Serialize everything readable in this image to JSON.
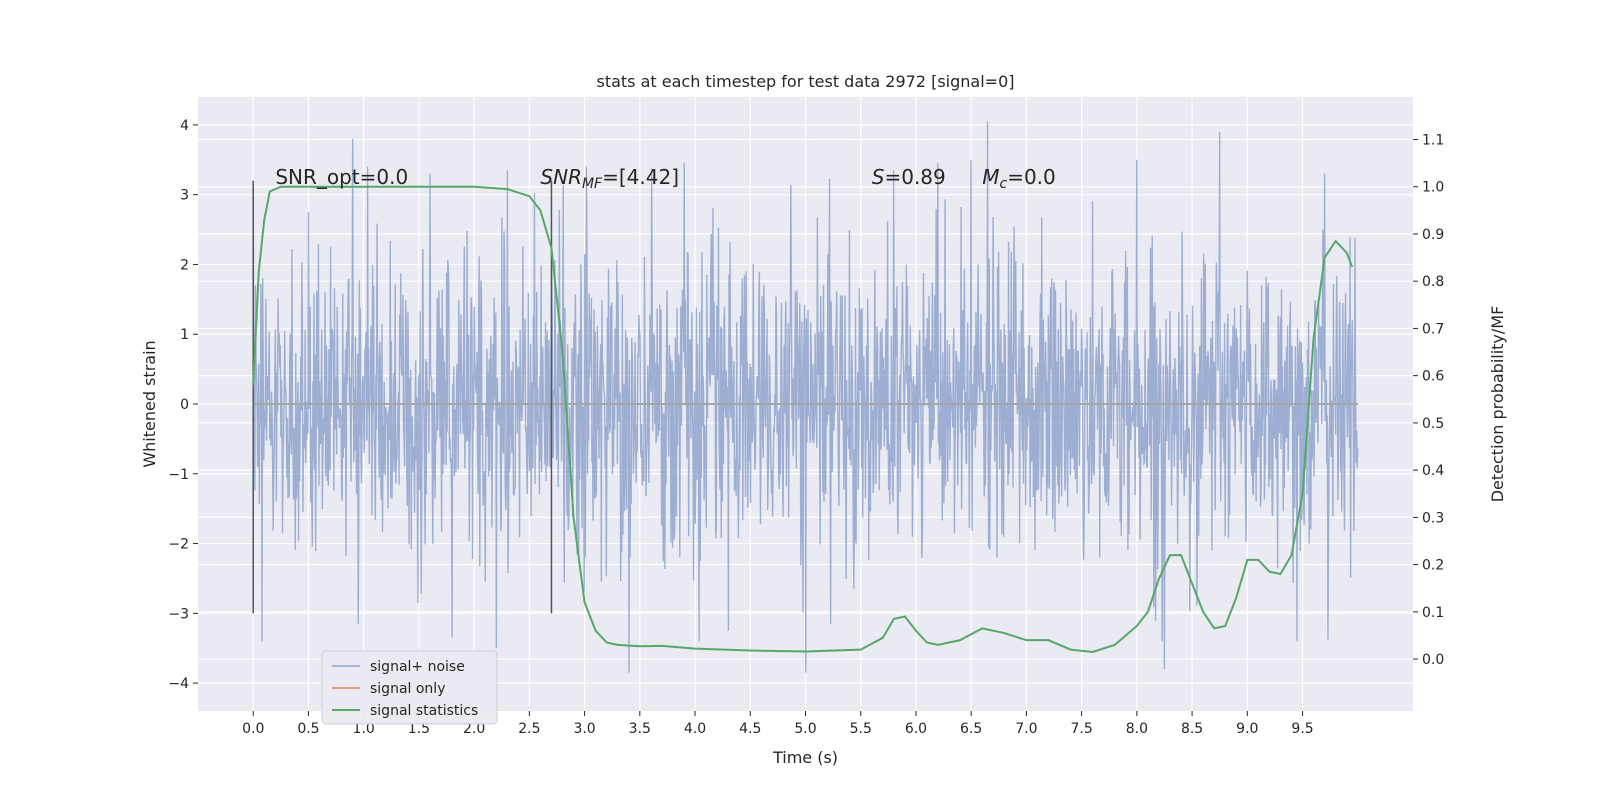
{
  "chart_data": {
    "type": "line",
    "title": "stats at each timestep for test data 2972 [signal=0]",
    "xlabel": "Time (s)",
    "ylabel": "Whitened strain",
    "y2label": "Detection probability/MF",
    "xlim": [
      -0.5,
      10.5
    ],
    "ylim": [
      -4.4,
      4.4
    ],
    "y2lim": [
      -0.11,
      1.19
    ],
    "x_ticks": [
      0.0,
      0.5,
      1.0,
      1.5,
      2.0,
      2.5,
      3.0,
      3.5,
      4.0,
      4.5,
      5.0,
      5.5,
      6.0,
      6.5,
      7.0,
      7.5,
      8.0,
      8.5,
      9.0,
      9.5
    ],
    "x_tick_labels": [
      "0.0",
      "0.5",
      "1.0",
      "1.5",
      "2.0",
      "2.5",
      "3.0",
      "3.5",
      "4.0",
      "4.5",
      "5.0",
      "5.5",
      "6.0",
      "6.5",
      "7.0",
      "7.5",
      "8.0",
      "8.5",
      "9.0",
      "9.5"
    ],
    "y_ticks": [
      -4,
      -3,
      -2,
      -1,
      0,
      1,
      2,
      3,
      4
    ],
    "y_tick_labels": [
      "−4",
      "−3",
      "−2",
      "−1",
      "0",
      "1",
      "2",
      "3",
      "4"
    ],
    "y2_ticks": [
      0.0,
      0.1,
      0.2,
      0.3,
      0.4,
      0.5,
      0.6,
      0.7,
      0.8,
      0.9,
      1.0,
      1.1
    ],
    "y2_tick_labels": [
      "0.0",
      "0.1",
      "0.2",
      "0.3",
      "0.4",
      "0.5",
      "0.6",
      "0.7",
      "0.8",
      "0.9",
      "1.0",
      "1.1"
    ],
    "grid": true,
    "legend_position": "lower-left",
    "series": [
      {
        "name": "signal+ noise",
        "axis": "left",
        "color": "#8fa3cc",
        "x_range": [
          0.0,
          10.0
        ],
        "envelope_spikes": [
          [
            0.0,
            3.2
          ],
          [
            0.9,
            3.8
          ],
          [
            1.6,
            3.3
          ],
          [
            2.3,
            3.35
          ],
          [
            3.9,
            3.45
          ],
          [
            5.8,
            3.35
          ],
          [
            6.2,
            3.45
          ],
          [
            6.5,
            3.5
          ],
          [
            6.65,
            4.05
          ],
          [
            8.0,
            3.5
          ],
          [
            8.75,
            3.9
          ],
          [
            9.7,
            3.3
          ],
          [
            1.8,
            -3.35
          ],
          [
            2.2,
            -3.5
          ],
          [
            3.4,
            -3.85
          ],
          [
            5.0,
            -3.85
          ],
          [
            8.25,
            -3.8
          ],
          [
            9.45,
            -3.4
          ],
          [
            0.95,
            -3.15
          ],
          [
            4.3,
            -3.25
          ]
        ]
      },
      {
        "name": "signal only",
        "axis": "left",
        "color": "#dd8452",
        "x": [
          0.0,
          10.0
        ],
        "y": [
          0.0,
          0.0
        ]
      },
      {
        "name": "signal statistics",
        "axis": "right",
        "color": "#55a868",
        "x": [
          0.0,
          0.05,
          0.1,
          0.15,
          0.25,
          0.5,
          1.0,
          1.5,
          2.0,
          2.3,
          2.5,
          2.6,
          2.7,
          2.8,
          2.9,
          3.0,
          3.1,
          3.2,
          3.3,
          3.5,
          3.7,
          4.0,
          4.5,
          5.0,
          5.5,
          5.7,
          5.8,
          5.9,
          6.0,
          6.1,
          6.2,
          6.4,
          6.6,
          6.8,
          7.0,
          7.2,
          7.4,
          7.6,
          7.8,
          8.0,
          8.1,
          8.2,
          8.3,
          8.4,
          8.5,
          8.6,
          8.7,
          8.8,
          8.9,
          9.0,
          9.1,
          9.2,
          9.3,
          9.4,
          9.5,
          9.6,
          9.7,
          9.8,
          9.9,
          9.95
        ],
        "y": [
          0.58,
          0.82,
          0.93,
          0.99,
          1.0,
          1.0,
          1.0,
          1.0,
          1.0,
          0.995,
          0.98,
          0.95,
          0.87,
          0.65,
          0.3,
          0.12,
          0.06,
          0.035,
          0.03,
          0.027,
          0.028,
          0.022,
          0.018,
          0.016,
          0.02,
          0.045,
          0.085,
          0.09,
          0.06,
          0.035,
          0.03,
          0.04,
          0.065,
          0.055,
          0.04,
          0.04,
          0.02,
          0.015,
          0.03,
          0.07,
          0.1,
          0.17,
          0.22,
          0.22,
          0.16,
          0.1,
          0.065,
          0.07,
          0.13,
          0.21,
          0.21,
          0.185,
          0.18,
          0.22,
          0.35,
          0.68,
          0.85,
          0.885,
          0.86,
          0.83
        ]
      }
    ],
    "vertical_markers": [
      {
        "x": 0.0,
        "y_range": [
          -3.0,
          3.2
        ]
      },
      {
        "x": 2.7,
        "y_range": [
          -3.0,
          3.2
        ]
      }
    ],
    "annotations": [
      {
        "x": 0.2,
        "y": 3.15,
        "text": "SNR_opt=0.0"
      },
      {
        "x": 2.6,
        "y": 3.15,
        "prefix": "SNR",
        "sub": "MF",
        "suffix": "=[4.42]"
      },
      {
        "x": 5.6,
        "y": 3.15,
        "prefix": "S",
        "suffix": "=0.89"
      },
      {
        "x": 6.6,
        "y": 3.15,
        "prefix": "M",
        "sub": "c",
        "suffix": "=0.0"
      }
    ]
  }
}
